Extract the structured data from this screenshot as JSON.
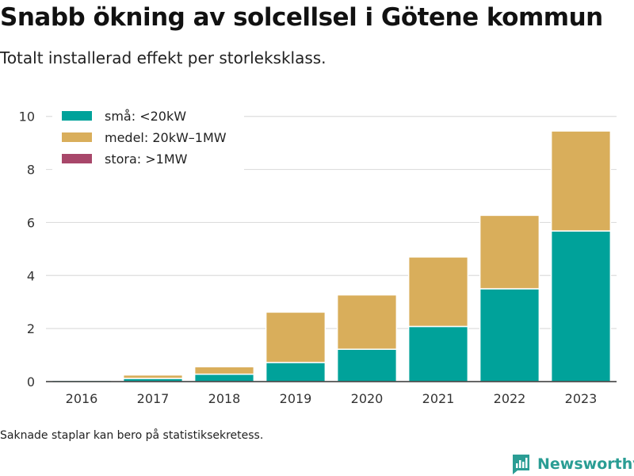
{
  "title": "Snabb ökning av solcellsel i Götene kommun",
  "subtitle": "Totalt installerad effekt per storleksklass.",
  "footnote": "Saknade staplar kan bero på statistiksekretess.",
  "brand": {
    "name": "Newsworthy",
    "icon": "newsworthy-logo-icon"
  },
  "chart_data": {
    "type": "bar",
    "stacked": true,
    "title": "",
    "xlabel": "",
    "ylabel": "",
    "categories": [
      "2016",
      "2017",
      "2018",
      "2019",
      "2020",
      "2021",
      "2022",
      "2023"
    ],
    "series": [
      {
        "name": "små: <20kW",
        "color": "#00a29a",
        "values": [
          0.05,
          0.12,
          0.28,
          0.72,
          1.22,
          2.08,
          3.5,
          5.68
        ]
      },
      {
        "name": "medel: 20kW–1MW",
        "color": "#d9ae5b",
        "values": [
          0.0,
          0.13,
          0.28,
          1.9,
          2.05,
          2.62,
          2.77,
          3.77
        ]
      },
      {
        "name": "stora: >1MW",
        "color": "#a8476a",
        "values": [
          0,
          0,
          0,
          0,
          0,
          0,
          0,
          0
        ]
      }
    ],
    "ylim": [
      0,
      10.5
    ],
    "yticks": [
      0,
      2,
      4,
      6,
      8,
      10
    ],
    "grid": true,
    "legend_position": "top-left"
  }
}
